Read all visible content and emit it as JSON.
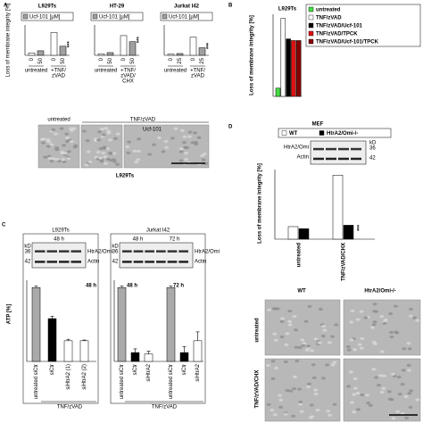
{
  "panels": {
    "A": {
      "letter": "A",
      "ylabel": "Loss of membrane integrity [%]",
      "legend": "Ucf-101 [µM]",
      "colors": [
        "#ffffff",
        "#a0a0a0"
      ],
      "ylim": [
        0,
        100
      ],
      "charts": [
        {
          "title": "L929Ts",
          "categories": [
            "0",
            "50",
            "0",
            "50"
          ],
          "values": [
            8,
            15,
            75,
            30
          ],
          "groups": [
            [
              "untreated"
            ],
            [
              "+TNF/",
              "zVAD"
            ]
          ],
          "annotation": "***"
        },
        {
          "title": "HT-29",
          "categories": [
            "0",
            "50",
            "0",
            "50"
          ],
          "values": [
            5,
            9,
            65,
            45
          ],
          "groups": [
            [
              "untreated"
            ],
            [
              "+TNF/",
              "zVAD/",
              "CHX"
            ]
          ],
          "annotation": "***"
        },
        {
          "title": "Jurkat I42",
          "categories": [
            "0",
            "25",
            "0",
            "25"
          ],
          "values": [
            4,
            6,
            60,
            25
          ],
          "groups": [
            [
              "untreated"
            ],
            [
              "+TNF/",
              "zVAD"
            ]
          ],
          "annotation": "***"
        }
      ],
      "micrographs": {
        "labels": [
          "untreated",
          "TNF/zVAD",
          "Ucf-101"
        ],
        "caption": "L929Ts"
      }
    },
    "B": {
      "letter": "B",
      "title": "L929Ts",
      "ylabel": "Loss of membrane integrity [%]",
      "ylim": [
        0,
        100
      ],
      "series": [
        {
          "name": "untreated",
          "color": "#44dd44",
          "values": [
            10
          ]
        },
        {
          "name": "TNF/zVAD",
          "color": "#ffffff",
          "values": [
            95
          ]
        },
        {
          "name": "TNF/zVAD/Ucf-101",
          "color": "#000000",
          "values": [
            70
          ]
        },
        {
          "name": "TNF/zVAD/TPCK",
          "color": "#dd1111",
          "values": [
            68
          ]
        },
        {
          "name": "TNF/zVAD/Ucf-101/TPCK",
          "color": "#880000",
          "values": [
            68
          ]
        }
      ]
    },
    "C": {
      "letter": "C",
      "ylabel": "ATP [%]",
      "treatment": "TNF/zVAD",
      "ylim": [
        0,
        110
      ],
      "blot": {
        "kd": "kD",
        "markers": [
          "36",
          "42"
        ],
        "bands": [
          "HtrA2/Omi",
          "Actin"
        ]
      },
      "charts": [
        {
          "title": "L929Ts",
          "times": [
            "48 h"
          ],
          "categories": [
            "untreated siCtr",
            "siCtr",
            "siHtrA2 (1)",
            "siHtrA2 (2)"
          ],
          "values": [
            100,
            58,
            28,
            28
          ],
          "errors": [
            2,
            3,
            2,
            1
          ],
          "colors": [
            "#aaaaaa",
            "#000000",
            "#ffffff",
            "#ffffff"
          ]
        },
        {
          "title": "Jurkat I42",
          "times": [
            "48 h",
            "72 h"
          ],
          "categories": [
            "untreated siCtr",
            "siCtr",
            "siHtrA2",
            "untreated siCtr",
            "siCtr",
            "siHtrA2"
          ],
          "values": [
            100,
            12,
            10,
            100,
            12,
            28
          ],
          "errors": [
            2,
            5,
            4,
            2,
            8,
            12
          ],
          "colors": [
            "#aaaaaa",
            "#000000",
            "#ffffff",
            "#aaaaaa",
            "#000000",
            "#ffffff"
          ]
        }
      ]
    },
    "D": {
      "letter": "D",
      "title": "MEF",
      "ylabel": "Loss of membrane integrity [%]",
      "ylim": [
        0,
        100
      ],
      "annotation": "***",
      "categories": [
        "untreated",
        "TNF/zVAD/CHX"
      ],
      "series": [
        {
          "name": "WT",
          "color": "#ffffff",
          "values": [
            18,
            92
          ]
        },
        {
          "name": "HtrA2/Omi-/-",
          "color": "#000000",
          "values": [
            15,
            20
          ]
        }
      ],
      "blot": {
        "kd": "kD",
        "markers": [
          "36",
          "42"
        ],
        "bands": [
          "HtrA2/Omi",
          "Actin"
        ]
      },
      "micrographs": {
        "columns": [
          "WT",
          "HtrA2/Omi-/-"
        ],
        "rows": [
          "untreated",
          "TNF/zVAD/CHX"
        ]
      }
    }
  }
}
